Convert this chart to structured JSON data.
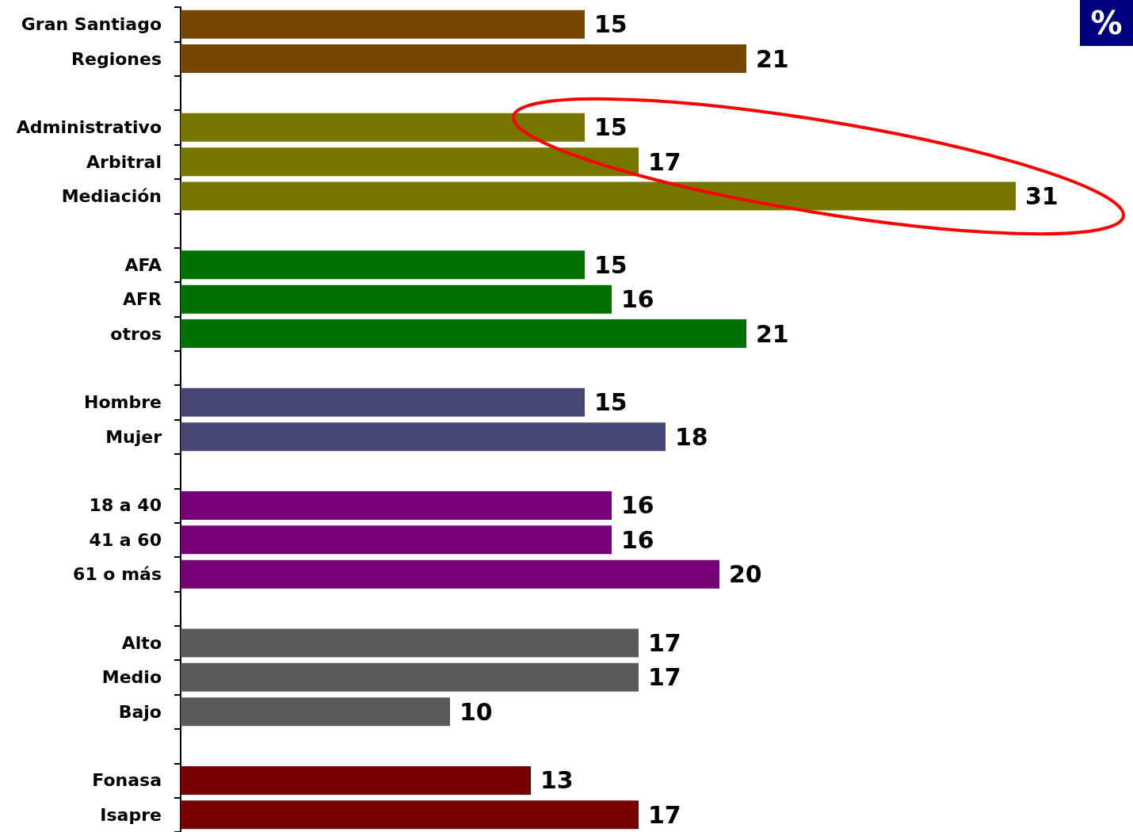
{
  "chart_data": {
    "type": "bar",
    "orientation": "horizontal",
    "categories": [
      "Gran Santiago",
      "Regiones",
      null,
      "Administrativo",
      "Arbitral",
      "Mediación",
      null,
      "AFA",
      "AFR",
      "otros",
      null,
      "Hombre",
      "Mujer",
      null,
      "18 a 40",
      "41 a 60",
      "61 o más",
      null,
      "Alto",
      "Medio",
      "Bajo",
      null,
      "Fonasa",
      "Isapre"
    ],
    "values": [
      15,
      21,
      null,
      15,
      17,
      31,
      null,
      15,
      16,
      21,
      null,
      15,
      18,
      null,
      16,
      16,
      20,
      null,
      17,
      17,
      10,
      null,
      13,
      17
    ],
    "colors": [
      "#764700",
      "#764700",
      null,
      "#767600",
      "#767600",
      "#767600",
      null,
      "#007000",
      "#007000",
      "#007000",
      null,
      "#464674",
      "#464674",
      null,
      "#760076",
      "#760076",
      "#760076",
      null,
      "#5a5a5a",
      "#5a5a5a",
      "#5a5a5a",
      null,
      "#760000",
      "#760000"
    ],
    "data_labels": true,
    "tick_labels": "y",
    "annotations": [
      "%"
    ]
  }
}
